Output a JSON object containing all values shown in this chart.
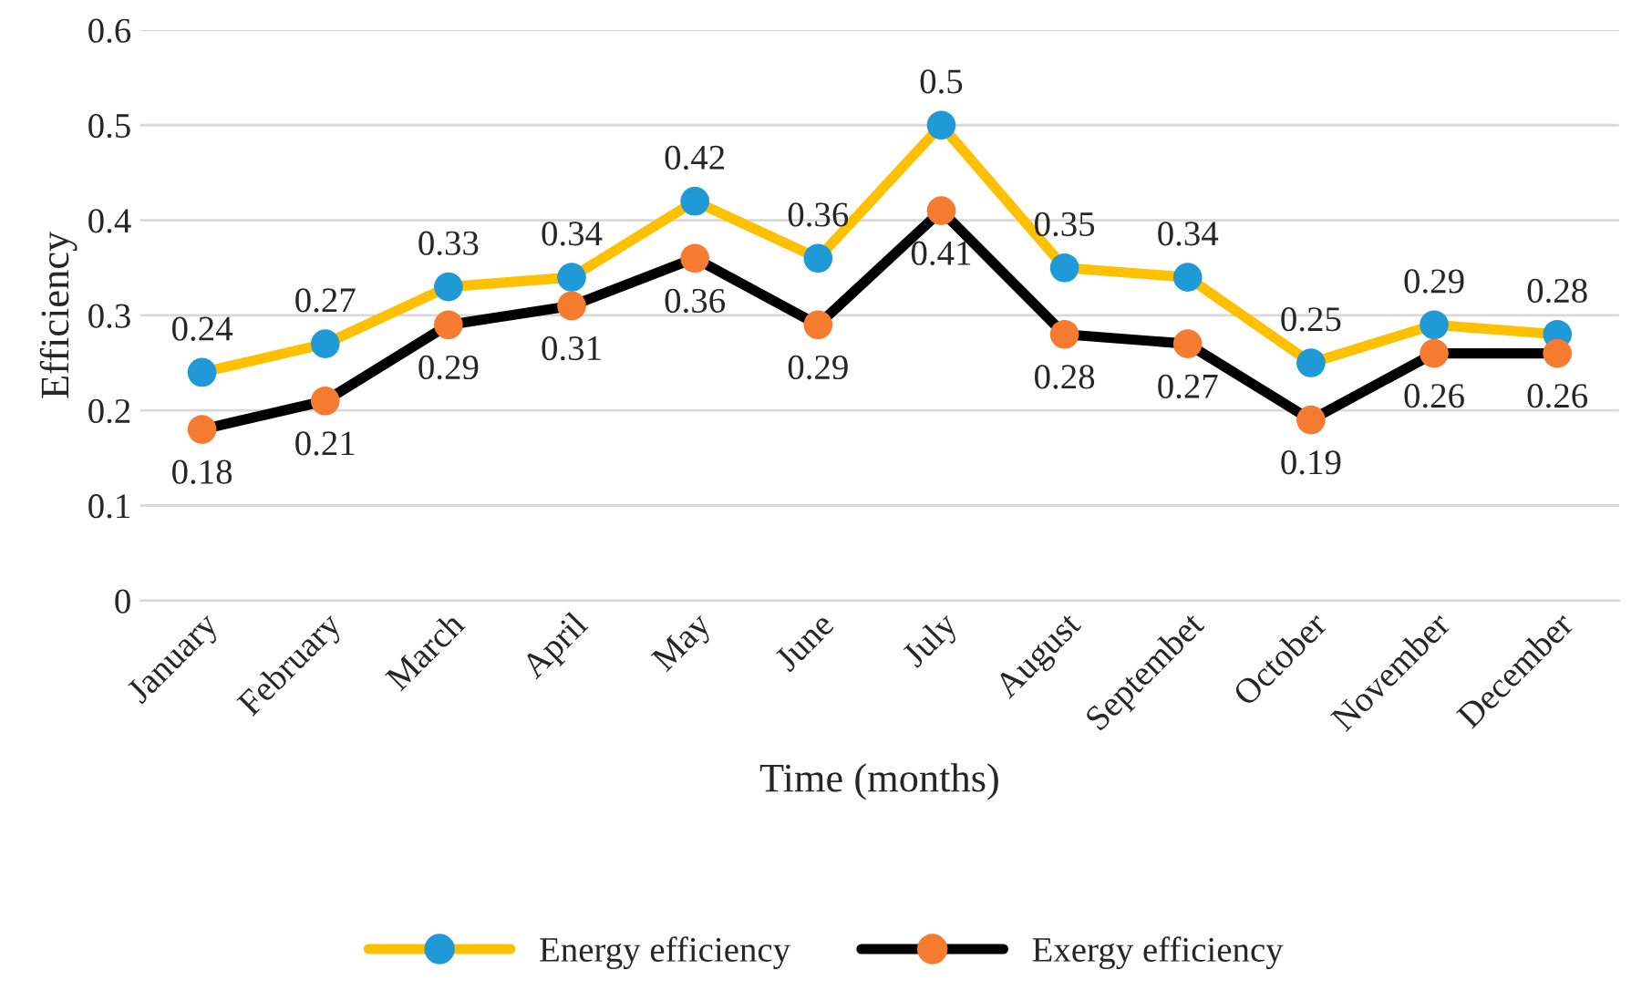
{
  "chart_data": {
    "type": "line",
    "xlabel": "Time (months)",
    "ylabel": "Efficiency",
    "categories": [
      "January",
      "February",
      "March",
      "April",
      "May",
      "June",
      "July",
      "August",
      "Septembet",
      "October",
      "November",
      "December"
    ],
    "series": [
      {
        "name": "Energy efficiency",
        "color": "#ffc000",
        "colors": [
          "#1f9ad6",
          "#1f9ad6",
          "#1f9ad6",
          "#1f9ad6",
          "#1f9ad6",
          "#1f9ad6",
          "#1f9ad6",
          "#1f9ad6",
          "#1f9ad6",
          "#1f9ad6",
          "#1f9ad6",
          "#1f9ad6"
        ],
        "values": [
          0.24,
          0.27,
          0.33,
          0.34,
          0.42,
          0.36,
          0.5,
          0.35,
          0.34,
          0.25,
          0.29,
          0.28
        ]
      },
      {
        "name": "Exergy efficiency",
        "color": "#000000",
        "colors": [
          "#f47b30",
          "#f47b30",
          "#f47b30",
          "#f47b30",
          "#f47b30",
          "#f47b30",
          "#f47b30",
          "#f47b30",
          "#f47b30",
          "#f47b30",
          "#f47b30",
          "#f47b30"
        ],
        "values": [
          0.18,
          0.21,
          0.29,
          0.31,
          0.36,
          0.29,
          0.41,
          0.28,
          0.27,
          0.19,
          0.26,
          0.26
        ]
      }
    ],
    "ylim": [
      0,
      0.6
    ],
    "yticks": [
      0,
      0.1,
      0.2,
      0.3,
      0.4,
      0.5,
      0.6
    ],
    "grid": "y",
    "legend": "bottom",
    "marker": "circle",
    "line_style": "solid",
    "data_labels": true
  }
}
